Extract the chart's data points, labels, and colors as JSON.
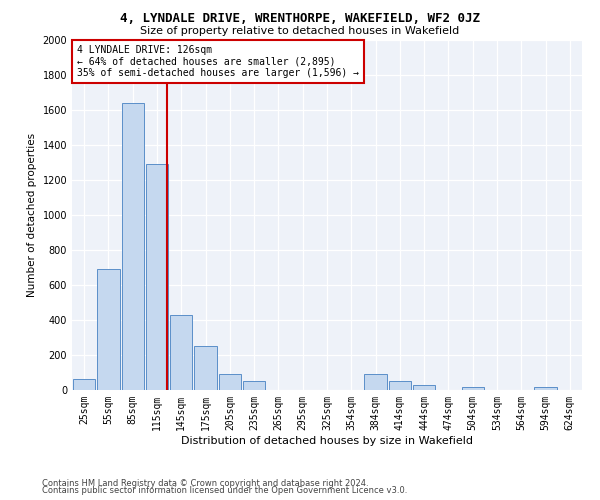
{
  "title1": "4, LYNDALE DRIVE, WRENTHORPE, WAKEFIELD, WF2 0JZ",
  "title2": "Size of property relative to detached houses in Wakefield",
  "xlabel": "Distribution of detached houses by size in Wakefield",
  "ylabel": "Number of detached properties",
  "categories": [
    "25sqm",
    "55sqm",
    "85sqm",
    "115sqm",
    "145sqm",
    "175sqm",
    "205sqm",
    "235sqm",
    "265sqm",
    "295sqm",
    "325sqm",
    "354sqm",
    "384sqm",
    "414sqm",
    "444sqm",
    "474sqm",
    "504sqm",
    "534sqm",
    "564sqm",
    "594sqm",
    "624sqm"
  ],
  "values": [
    65,
    690,
    1640,
    1290,
    430,
    250,
    90,
    50,
    0,
    0,
    0,
    0,
    90,
    50,
    30,
    0,
    20,
    0,
    0,
    15,
    0
  ],
  "bar_color": "#c5d8ef",
  "bar_edge_color": "#5b8fc9",
  "vline_color": "#cc0000",
  "vline_pos": 3.42,
  "annotation_text": "4 LYNDALE DRIVE: 126sqm\n← 64% of detached houses are smaller (2,895)\n35% of semi-detached houses are larger (1,596) →",
  "annotation_box_color": "#ffffff",
  "annotation_box_edge": "#cc0000",
  "footer1": "Contains HM Land Registry data © Crown copyright and database right 2024.",
  "footer2": "Contains public sector information licensed under the Open Government Licence v3.0.",
  "ylim": [
    0,
    2000
  ],
  "yticks": [
    0,
    200,
    400,
    600,
    800,
    1000,
    1200,
    1400,
    1600,
    1800,
    2000
  ],
  "bg_color": "#eef2f9",
  "fig_bg_color": "#ffffff",
  "title1_fontsize": 9,
  "title2_fontsize": 8,
  "xlabel_fontsize": 8,
  "ylabel_fontsize": 7.5,
  "tick_fontsize": 7,
  "ann_fontsize": 7,
  "footer_fontsize": 6
}
